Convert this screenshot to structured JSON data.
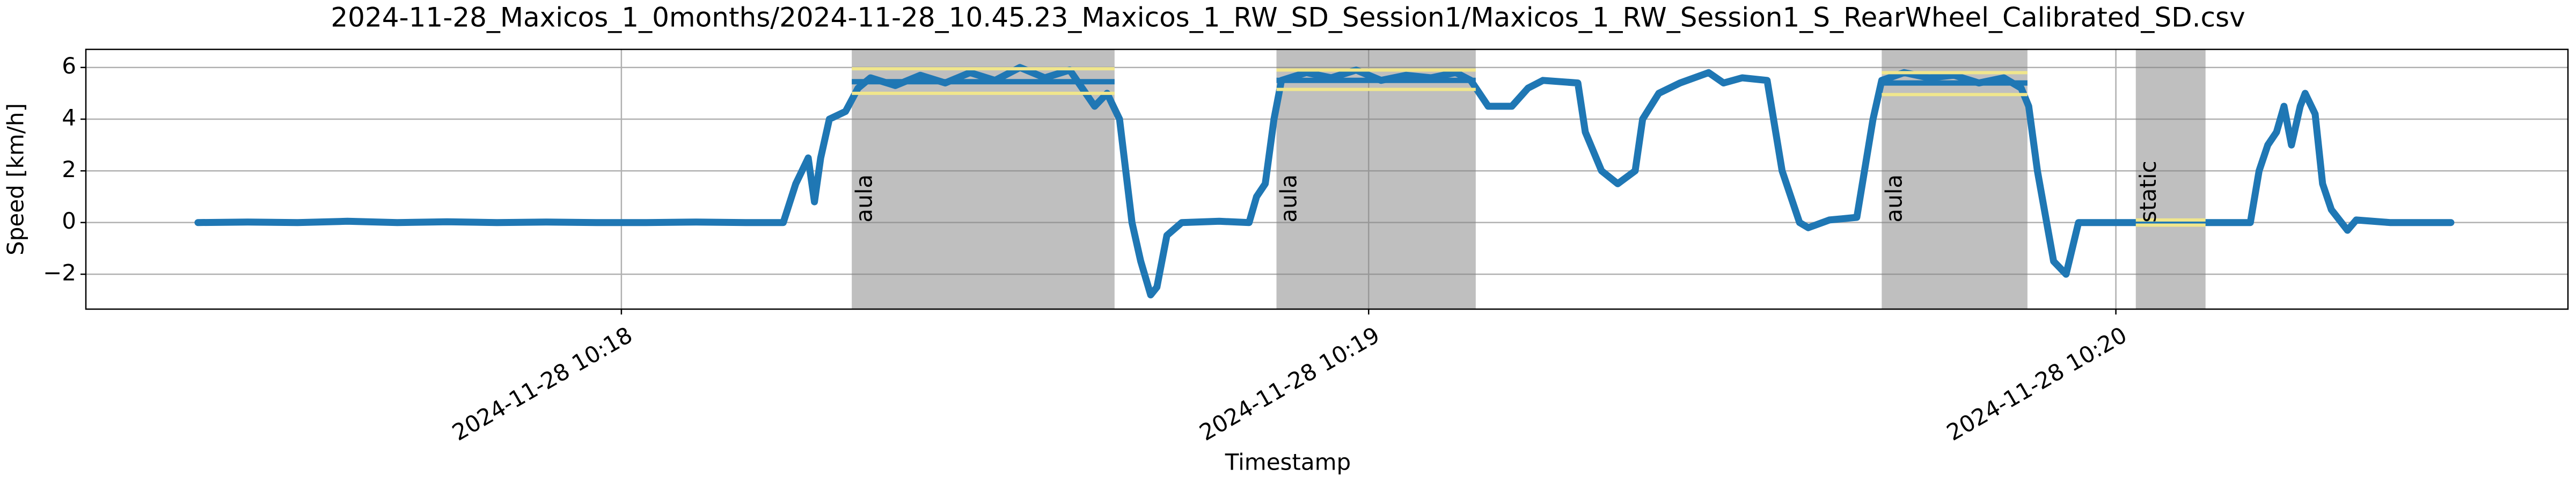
{
  "chart_data": {
    "type": "line",
    "title": "2024-11-28_Maxicos_1_0months/2024-11-28_10.45.23_Maxicos_1_RW_SD_Session1/Maxicos_1_RW_Session1_S_RearWheel_Calibrated_SD.csv",
    "x_label": "Timestamp",
    "y_label": "Speed [km/h]",
    "color": "#1f77b4",
    "grid": true,
    "x": [
      "2024-11-28 10:17:26",
      "2024-11-28 10:17:30",
      "2024-11-28 10:17:34",
      "2024-11-28 10:17:38",
      "2024-11-28 10:17:42",
      "2024-11-28 10:17:46",
      "2024-11-28 10:17:50",
      "2024-11-28 10:17:54",
      "2024-11-28 10:17:58",
      "2024-11-28 10:18:02",
      "2024-11-28 10:18:06",
      "2024-11-28 10:18:10",
      "2024-11-28 10:18:13",
      "2024-11-28 10:18:14",
      "2024-11-28 10:18:15",
      "2024-11-28 10:18:15.5",
      "2024-11-28 10:18:16",
      "2024-11-28 10:18:16.7",
      "2024-11-28 10:18:18",
      "2024-11-28 10:18:19",
      "2024-11-28 10:18:20",
      "2024-11-28 10:18:22",
      "2024-11-28 10:18:24",
      "2024-11-28 10:18:26",
      "2024-11-28 10:18:28",
      "2024-11-28 10:18:30",
      "2024-11-28 10:18:32",
      "2024-11-28 10:18:34",
      "2024-11-28 10:18:36",
      "2024-11-28 10:18:37",
      "2024-11-28 10:18:38",
      "2024-11-28 10:18:39",
      "2024-11-28 10:18:40",
      "2024-11-28 10:18:41",
      "2024-11-28 10:18:41.7",
      "2024-11-28 10:18:42.5",
      "2024-11-28 10:18:43",
      "2024-11-28 10:18:43.8",
      "2024-11-28 10:18:45",
      "2024-11-28 10:18:48",
      "2024-11-28 10:18:50.4",
      "2024-11-28 10:18:51",
      "2024-11-28 10:18:51.7",
      "2024-11-28 10:18:52.4",
      "2024-11-28 10:18:53",
      "2024-11-28 10:18:55",
      "2024-11-28 10:18:57",
      "2024-11-28 10:18:59",
      "2024-11-28 10:19:01",
      "2024-11-28 10:19:03",
      "2024-11-28 10:19:05",
      "2024-11-28 10:19:07",
      "2024-11-28 10:19:08.2",
      "2024-11-28 10:19:08.9",
      "2024-11-28 10:19:09.6",
      "2024-11-28 10:19:11.5",
      "2024-11-28 10:19:12.8",
      "2024-11-28 10:19:14",
      "2024-11-28 10:19:16.8",
      "2024-11-28 10:19:17.4",
      "2024-11-28 10:19:18.7",
      "2024-11-28 10:19:20",
      "2024-11-28 10:19:21.4",
      "2024-11-28 10:19:22",
      "2024-11-28 10:19:23.3",
      "2024-11-28 10:19:25",
      "2024-11-28 10:19:27.3",
      "2024-11-28 10:19:28.5",
      "2024-11-28 10:19:30",
      "2024-11-28 10:19:32",
      "2024-11-28 10:19:33.2",
      "2024-11-28 10:19:34.6",
      "2024-11-28 10:19:35.3",
      "2024-11-28 10:19:37",
      "2024-11-28 10:19:39.2",
      "2024-11-28 10:19:40.5",
      "2024-11-28 10:19:41.2",
      "2024-11-28 10:19:43",
      "2024-11-28 10:19:45",
      "2024-11-28 10:19:47",
      "2024-11-28 10:19:49",
      "2024-11-28 10:19:51",
      "2024-11-28 10:19:52.4",
      "2024-11-28 10:19:53",
      "2024-11-28 10:19:53.7",
      "2024-11-28 10:19:55",
      "2024-11-28 10:19:56",
      "2024-11-28 10:19:57",
      "2024-11-28 10:20:00",
      "2024-11-28 10:20:04",
      "2024-11-28 10:20:08",
      "2024-11-28 10:20:10.8",
      "2024-11-28 10:20:11.5",
      "2024-11-28 10:20:12.2",
      "2024-11-28 10:20:12.9",
      "2024-11-28 10:20:13.5",
      "2024-11-28 10:20:14.1",
      "2024-11-28 10:20:14.8",
      "2024-11-28 10:20:15.2",
      "2024-11-28 10:20:16",
      "2024-11-28 10:20:16.6",
      "2024-11-28 10:20:17.3",
      "2024-11-28 10:20:18.6",
      "2024-11-28 10:20:19.3",
      "2024-11-28 10:20:22",
      "2024-11-28 10:20:26.9"
    ],
    "values": [
      0,
      0.02,
      0,
      0.05,
      0,
      0.03,
      0,
      0.02,
      0,
      0,
      0.02,
      0,
      0,
      1.5,
      2.5,
      0.8,
      2.5,
      4,
      4.3,
      5.2,
      5.6,
      5.3,
      5.7,
      5.4,
      5.8,
      5.5,
      6.0,
      5.6,
      5.9,
      5.2,
      4.5,
      5.0,
      4.0,
      0,
      -1.5,
      -2.8,
      -2.5,
      -0.5,
      0,
      0.05,
      0,
      1,
      1.5,
      4,
      5.5,
      5.8,
      5.6,
      5.9,
      5.5,
      5.7,
      5.6,
      5.8,
      5.5,
      5,
      4.5,
      4.5,
      5.2,
      5.5,
      5.4,
      3.5,
      2,
      1.5,
      2,
      4,
      5,
      5.4,
      5.8,
      5.4,
      5.6,
      5.5,
      2,
      0,
      -0.2,
      0.1,
      0.2,
      4,
      5.5,
      5.8,
      5.6,
      5.7,
      5.4,
      5.6,
      5.2,
      4.5,
      2,
      -1.5,
      -2,
      0,
      0,
      0,
      0,
      0,
      2,
      3,
      3.5,
      4.5,
      3,
      4.5,
      5,
      4.2,
      1.5,
      0.5,
      -0.3,
      0.1,
      0,
      0
    ],
    "xlim": [
      "2024-11-28 10:17:17",
      "2024-11-28 10:20:36.3"
    ],
    "xticks": [
      {
        "value": "2024-11-28 10:18:00",
        "label": "2024-11-28 10:18"
      },
      {
        "value": "2024-11-28 10:19:00",
        "label": "2024-11-28 10:19"
      },
      {
        "value": "2024-11-28 10:20:00",
        "label": "2024-11-28 10:20"
      }
    ],
    "ylim": [
      -3.35,
      6.7
    ],
    "yticks": [
      {
        "value": -2,
        "label": "−2"
      },
      0,
      2,
      4,
      6
    ],
    "span_color": "#808080",
    "stat_colors": {
      "mean": "#1f77b4",
      "band": "#f0e68c"
    },
    "spans": [
      {
        "start": "2024-11-28 10:18:18.5",
        "end": "2024-11-28 10:18:39.6",
        "label": "aula",
        "mean": 5.45,
        "upper": 5.95,
        "lower": 5.0
      },
      {
        "start": "2024-11-28 10:18:52.6",
        "end": "2024-11-28 10:19:08.6",
        "label": "aula",
        "mean": 5.5,
        "upper": 5.9,
        "lower": 5.15
      },
      {
        "start": "2024-11-28 10:19:41.2",
        "end": "2024-11-28 10:19:52.9",
        "label": "aula",
        "mean": 5.4,
        "upper": 5.8,
        "lower": 4.95
      },
      {
        "start": "2024-11-28 10:20:01.6",
        "end": "2024-11-28 10:20:07.2",
        "label": "static",
        "mean": 0,
        "upper": 0.1,
        "lower": -0.1
      }
    ]
  }
}
